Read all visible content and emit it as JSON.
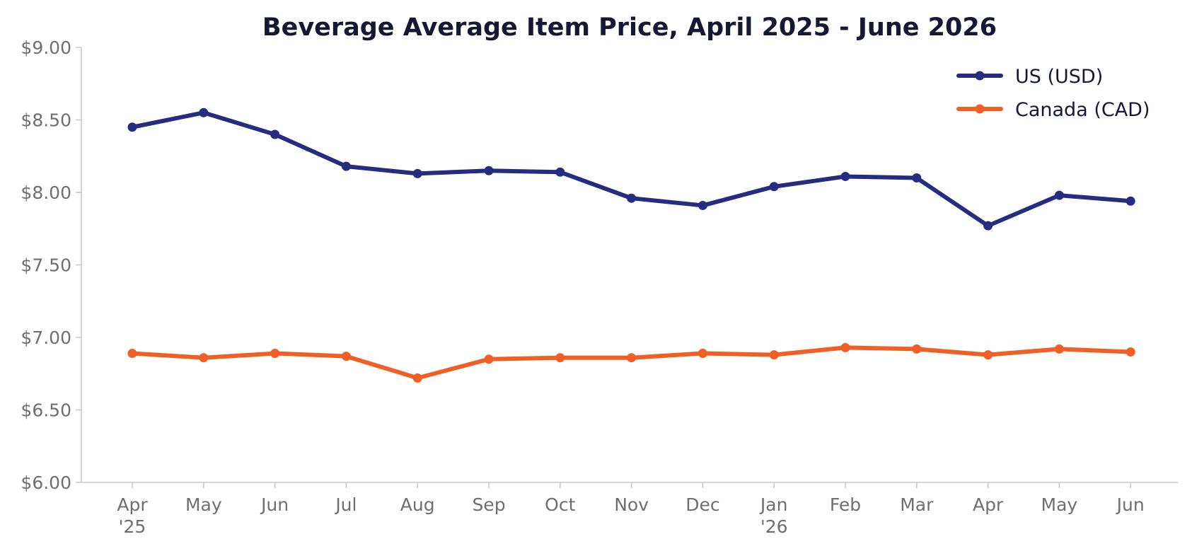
{
  "chart_data": {
    "type": "line",
    "title": "Beverage Average Item Price, April 2025 - June 2026",
    "xlabel": "",
    "ylabel": "",
    "categories": [
      [
        "Apr",
        "'25"
      ],
      [
        "May"
      ],
      [
        "Jun"
      ],
      [
        "Jul"
      ],
      [
        "Aug"
      ],
      [
        "Sep"
      ],
      [
        "Oct"
      ],
      [
        "Nov"
      ],
      [
        "Dec"
      ],
      [
        "Jan",
        "'26"
      ],
      [
        "Feb"
      ],
      [
        "Mar"
      ],
      [
        "Apr"
      ],
      [
        "May"
      ],
      [
        "Jun"
      ]
    ],
    "ylim": [
      6.0,
      9.0
    ],
    "yticks": [
      6.0,
      6.5,
      7.0,
      7.5,
      8.0,
      8.5,
      9.0
    ],
    "ytick_labels": [
      "$6.00",
      "$6.50",
      "$7.00",
      "$7.50",
      "$8.00",
      "$8.50",
      "$9.00"
    ],
    "grid": false,
    "legend_position": "top-right",
    "series": [
      {
        "name": "US (USD)",
        "color": "#262d80",
        "values": [
          8.45,
          8.55,
          8.4,
          8.18,
          8.13,
          8.15,
          8.14,
          7.96,
          7.91,
          8.04,
          8.11,
          8.1,
          7.77,
          7.98,
          7.94
        ]
      },
      {
        "name": "Canada (CAD)",
        "color": "#f05f26",
        "values": [
          6.89,
          6.86,
          6.89,
          6.87,
          6.72,
          6.85,
          6.86,
          6.86,
          6.89,
          6.88,
          6.93,
          6.92,
          6.88,
          6.92,
          6.9
        ]
      }
    ]
  }
}
